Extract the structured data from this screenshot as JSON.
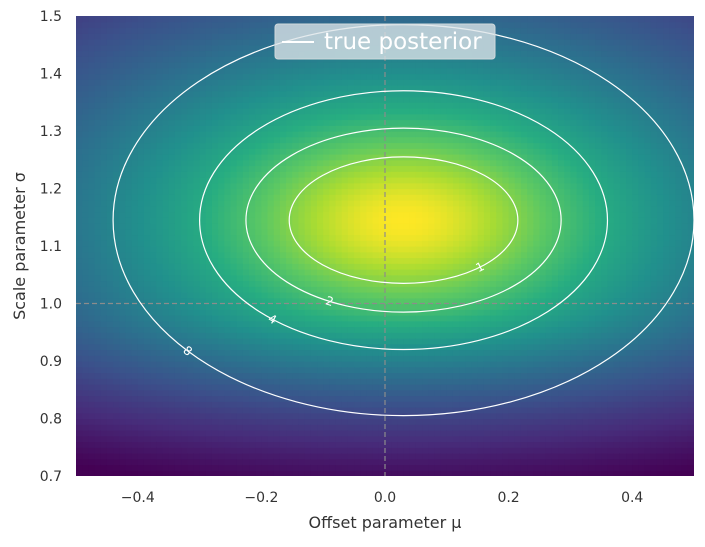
{
  "chart_data": {
    "type": "heatmap",
    "xlabel": "Offset parameter μ",
    "ylabel": "Scale parameter σ",
    "xlim": [
      -0.5,
      0.5
    ],
    "ylim": [
      0.7,
      1.5
    ],
    "xticks": [
      -0.4,
      -0.2,
      0.0,
      0.2,
      0.4
    ],
    "xtick_labels": [
      "−0.4",
      "−0.2",
      "0.0",
      "0.2",
      "0.4"
    ],
    "yticks": [
      0.7,
      0.8,
      0.9,
      1.0,
      1.1,
      1.2,
      1.3,
      1.4,
      1.5
    ],
    "ytick_labels": [
      "0.7",
      "0.8",
      "0.9",
      "1.0",
      "1.1",
      "1.2",
      "1.3",
      "1.4",
      "1.5"
    ],
    "colormap": "viridis",
    "posterior_peak": {
      "mu": 0.03,
      "sigma": 1.145
    },
    "support_cutoff_sigma": 1.0,
    "contours": [
      {
        "level": 1,
        "label": "1",
        "semi_axis_mu": 0.185,
        "semi_axis_sigma": 0.11
      },
      {
        "level": 2,
        "label": "2",
        "semi_axis_mu": 0.255,
        "semi_axis_sigma": 0.16
      },
      {
        "level": 4,
        "label": "4",
        "semi_axis_mu": 0.33,
        "semi_axis_sigma": 0.225
      },
      {
        "level": 8,
        "label": "8",
        "semi_axis_mu": 0.47,
        "semi_axis_sigma": 0.34
      }
    ],
    "reference_lines": {
      "mu": 0.0,
      "sigma": 1.0
    },
    "legend": {
      "label": "true posterior",
      "position": "top-center"
    },
    "grid": false
  }
}
